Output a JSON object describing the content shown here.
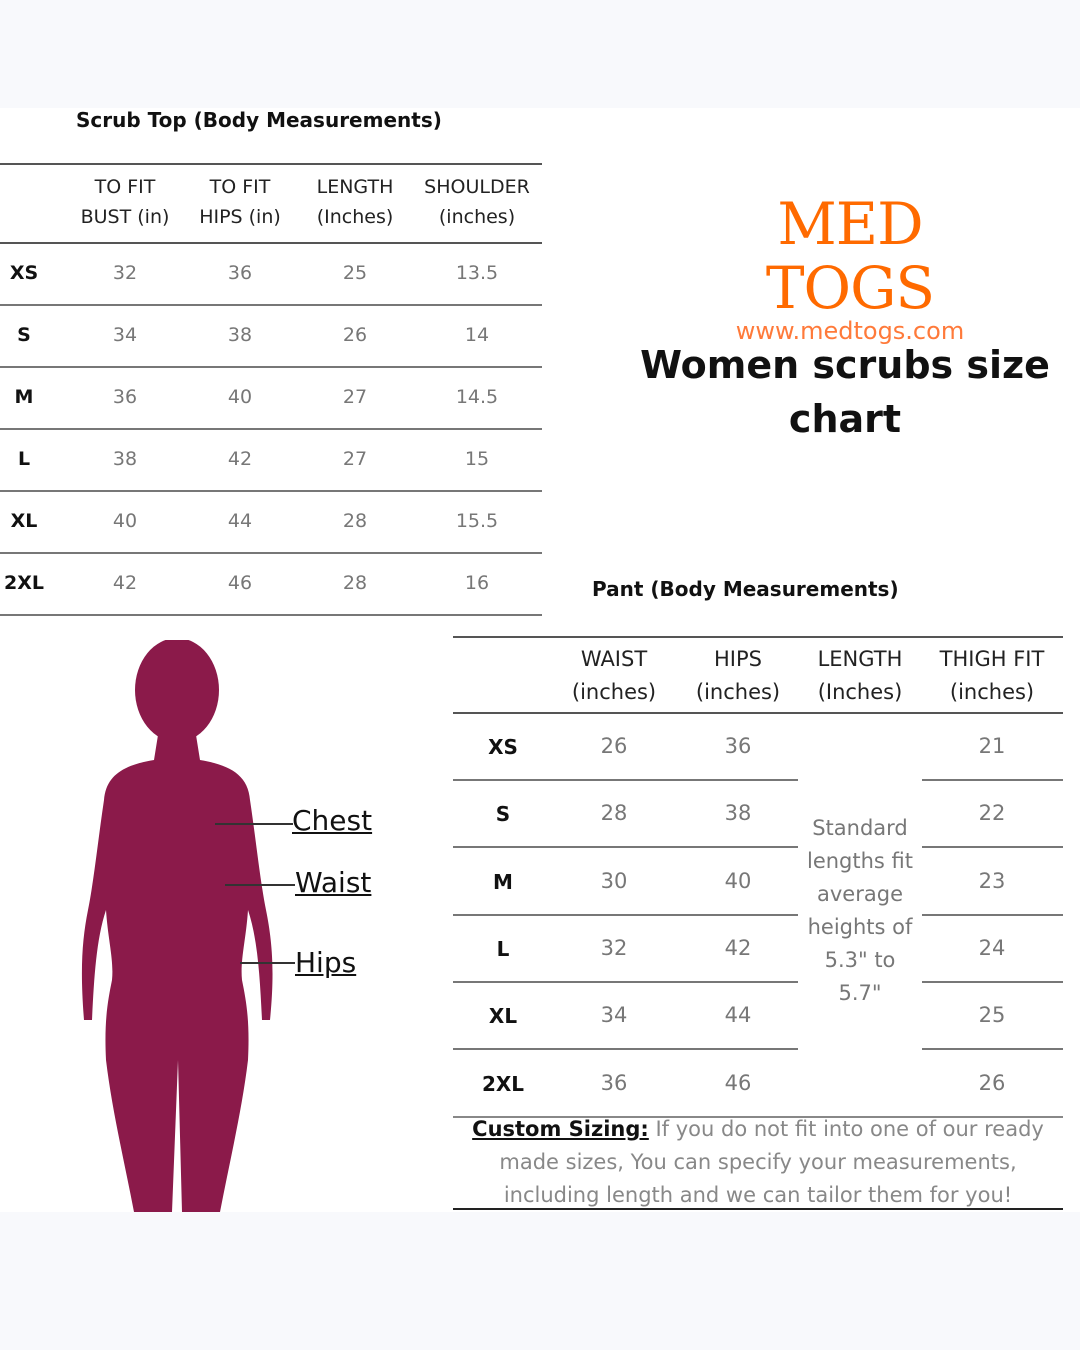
{
  "top_table": {
    "title": "Scrub Top  (Body Measurements)",
    "headers": [
      [
        "TO FIT",
        "BUST (in)"
      ],
      [
        "TO FIT",
        "HIPS (in)"
      ],
      [
        "LENGTH",
        "(Inches)"
      ],
      [
        "SHOULDER",
        "(inches)"
      ]
    ],
    "rows": [
      {
        "size": "XS",
        "values": [
          "32",
          "36",
          "25",
          "13.5"
        ]
      },
      {
        "size": "S",
        "values": [
          "34",
          "38",
          "26",
          "14"
        ]
      },
      {
        "size": "M",
        "values": [
          "36",
          "40",
          "27",
          "14.5"
        ]
      },
      {
        "size": "L",
        "values": [
          "38",
          "42",
          "27",
          "15"
        ]
      },
      {
        "size": "XL",
        "values": [
          "40",
          "44",
          "28",
          "15.5"
        ]
      },
      {
        "size": "2XL",
        "values": [
          "42",
          "46",
          "28",
          "16"
        ]
      }
    ]
  },
  "logo": {
    "brand": "MED TOGS",
    "url": "www.medtogs.com",
    "color": "#ff6a00"
  },
  "headline": {
    "line1": "Women scrubs size",
    "line2": "chart"
  },
  "pant_table": {
    "title": "Pant (Body Measurements)",
    "headers": [
      [
        "WAIST",
        "(inches)"
      ],
      [
        "HIPS",
        "(inches)"
      ],
      [
        "LENGTH",
        "(Inches)"
      ],
      [
        "THIGH FIT",
        "(inches)"
      ]
    ],
    "rows": [
      {
        "size": "XS",
        "waist": "26",
        "hips": "36",
        "thigh": "21"
      },
      {
        "size": "S",
        "waist": "28",
        "hips": "38",
        "thigh": "22"
      },
      {
        "size": "M",
        "waist": "30",
        "hips": "40",
        "thigh": "23"
      },
      {
        "size": "L",
        "waist": "32",
        "hips": "42",
        "thigh": "24"
      },
      {
        "size": "XL",
        "waist": "34",
        "hips": "44",
        "thigh": "25"
      },
      {
        "size": "2XL",
        "waist": "36",
        "hips": "46",
        "thigh": "26"
      }
    ],
    "length_note": [
      "Standard",
      "lengths fit",
      "average",
      "heights of",
      "5.3\" to",
      "5.7\""
    ]
  },
  "body_labels": {
    "chest": "Chest",
    "waist": "Waist",
    "hips": "Hips",
    "figure_color": "#8b1a4a"
  },
  "custom_sizing": {
    "label": "Custom Sizing:",
    "text": " If you do not fit into one of our ready made sizes, You can specify your measurements, including length and we can tailor them for you!"
  }
}
